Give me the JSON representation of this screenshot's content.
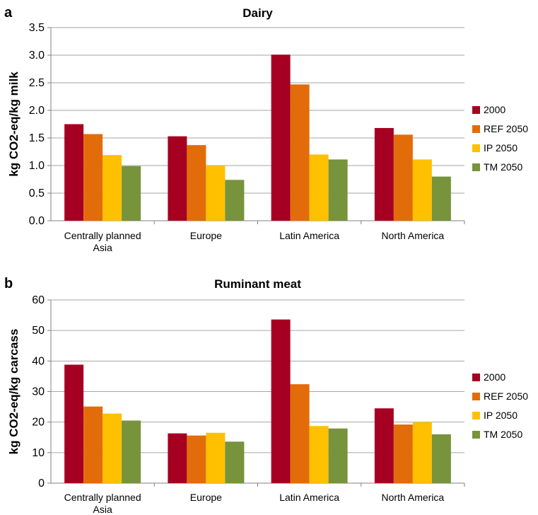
{
  "chart_data": [
    {
      "panel": "a",
      "type": "bar",
      "title": "Dairy",
      "ylabel": "kg CO2-eq/kg milk",
      "ylim": [
        0,
        3.5
      ],
      "yticks": [
        "0.0",
        "0.5",
        "1.0",
        "1.5",
        "2.0",
        "2.5",
        "3.0",
        "3.5"
      ],
      "categories": [
        [
          "Centrally planned",
          "Asia"
        ],
        [
          "Europe"
        ],
        [
          "Latin America"
        ],
        [
          "North America"
        ]
      ],
      "series": [
        {
          "name": "2000",
          "color": "#a50021",
          "values": [
            1.75,
            1.53,
            3.01,
            1.68
          ]
        },
        {
          "name": "REF 2050",
          "color": "#e36c0a",
          "values": [
            1.57,
            1.37,
            2.47,
            1.56
          ]
        },
        {
          "name": "IP 2050",
          "color": "#ffc000",
          "values": [
            1.19,
            1.0,
            1.2,
            1.11
          ]
        },
        {
          "name": "TM 2050",
          "color": "#77933c",
          "values": [
            0.99,
            0.74,
            1.11,
            0.8
          ]
        }
      ],
      "grid": true,
      "legend": "right"
    },
    {
      "panel": "b",
      "type": "bar",
      "title": "Ruminant meat",
      "ylabel": "kg CO2-eq/kg carcass",
      "ylim": [
        0,
        60
      ],
      "yticks": [
        "0",
        "10",
        "20",
        "30",
        "40",
        "50",
        "60"
      ],
      "categories": [
        [
          "Centrally planned",
          "Asia"
        ],
        [
          "Europe"
        ],
        [
          "Latin America"
        ],
        [
          "North America"
        ]
      ],
      "series": [
        {
          "name": "2000",
          "color": "#a50021",
          "values": [
            38.8,
            16.3,
            53.6,
            24.5
          ]
        },
        {
          "name": "REF 2050",
          "color": "#e36c0a",
          "values": [
            25.1,
            15.6,
            32.4,
            19.2
          ]
        },
        {
          "name": "IP 2050",
          "color": "#ffc000",
          "values": [
            22.8,
            16.5,
            18.7,
            20.0
          ]
        },
        {
          "name": "TM 2050",
          "color": "#77933c",
          "values": [
            20.5,
            13.6,
            17.9,
            16.0
          ]
        }
      ],
      "grid": true,
      "legend": "right"
    }
  ]
}
